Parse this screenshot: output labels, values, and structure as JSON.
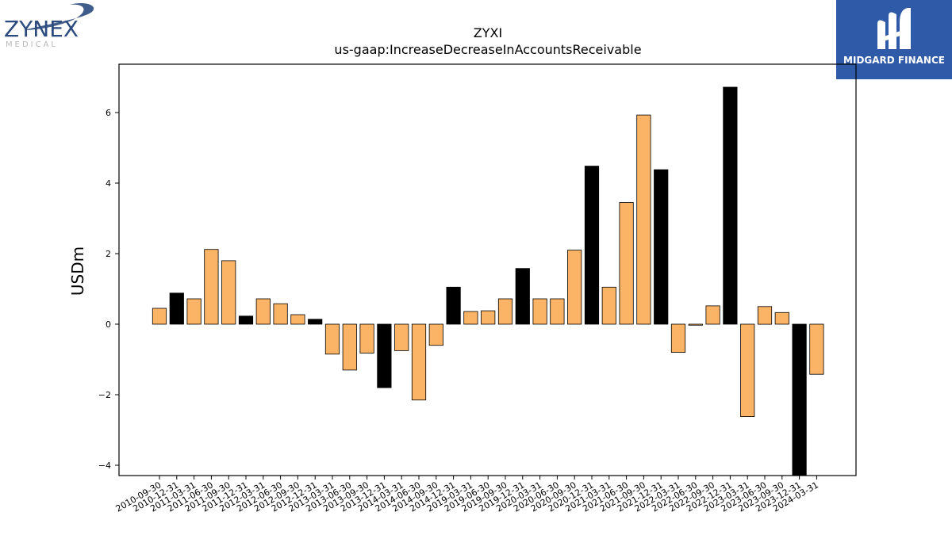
{
  "logos": {
    "left": {
      "name": "ZYNEX",
      "sub": "MEDICAL"
    },
    "right": {
      "name": "MIDGARD FINANCE",
      "background": "#2f5aa8"
    }
  },
  "colors": {
    "positive_bar": "#fbb365",
    "highlight_bar": "#000000",
    "axis": "#000000"
  },
  "chart_data": {
    "type": "bar",
    "title": "ZYXI",
    "subtitle": "us-gaap:IncreaseDecreaseInAccountsReceivable",
    "xlabel": "",
    "ylabel": "USDm",
    "ylim": [
      -4.35,
      7.35
    ],
    "yticks": [
      -4,
      -2,
      0,
      2,
      4,
      6
    ],
    "grid": false,
    "legend": "none",
    "categories": [
      "2010-09-30",
      "2010-12-31",
      "2011-03-31",
      "2011-06-30",
      "2011-09-30",
      "2011-12-31",
      "2012-03-31",
      "2012-06-30",
      "2012-09-30",
      "2012-12-31",
      "2013-03-31",
      "2013-06-30",
      "2013-09-30",
      "2013-12-31",
      "2014-03-31",
      "2014-06-30",
      "2014-09-30",
      "2014-12-31",
      "2019-03-31",
      "2019-06-30",
      "2019-09-30",
      "2019-12-31",
      "2020-03-31",
      "2020-06-30",
      "2020-09-30",
      "2020-12-31",
      "2021-03-31",
      "2021-06-30",
      "2021-09-30",
      "2021-12-31",
      "2022-03-31",
      "2022-06-30",
      "2022-09-30",
      "2022-12-31",
      "2023-03-31",
      "2023-06-30",
      "2023-09-30",
      "2023-12-31",
      "2024-03-31"
    ],
    "values": [
      0.45,
      0.88,
      0.72,
      2.12,
      1.8,
      0.23,
      0.72,
      0.58,
      0.27,
      0.14,
      -0.85,
      -1.3,
      -0.82,
      -1.8,
      -0.75,
      -2.15,
      -0.6,
      1.05,
      0.36,
      0.38,
      0.72,
      1.58,
      0.72,
      0.72,
      2.1,
      4.48,
      1.05,
      3.45,
      5.93,
      4.38,
      -0.8,
      -0.03,
      0.52,
      6.72,
      -2.62,
      0.5,
      0.33,
      -4.35,
      -1.42
    ],
    "highlight": [
      false,
      true,
      false,
      false,
      false,
      true,
      false,
      false,
      false,
      true,
      false,
      false,
      false,
      true,
      false,
      false,
      false,
      true,
      false,
      false,
      false,
      true,
      false,
      false,
      false,
      true,
      false,
      false,
      false,
      true,
      false,
      false,
      false,
      true,
      false,
      false,
      false,
      true,
      false
    ]
  }
}
